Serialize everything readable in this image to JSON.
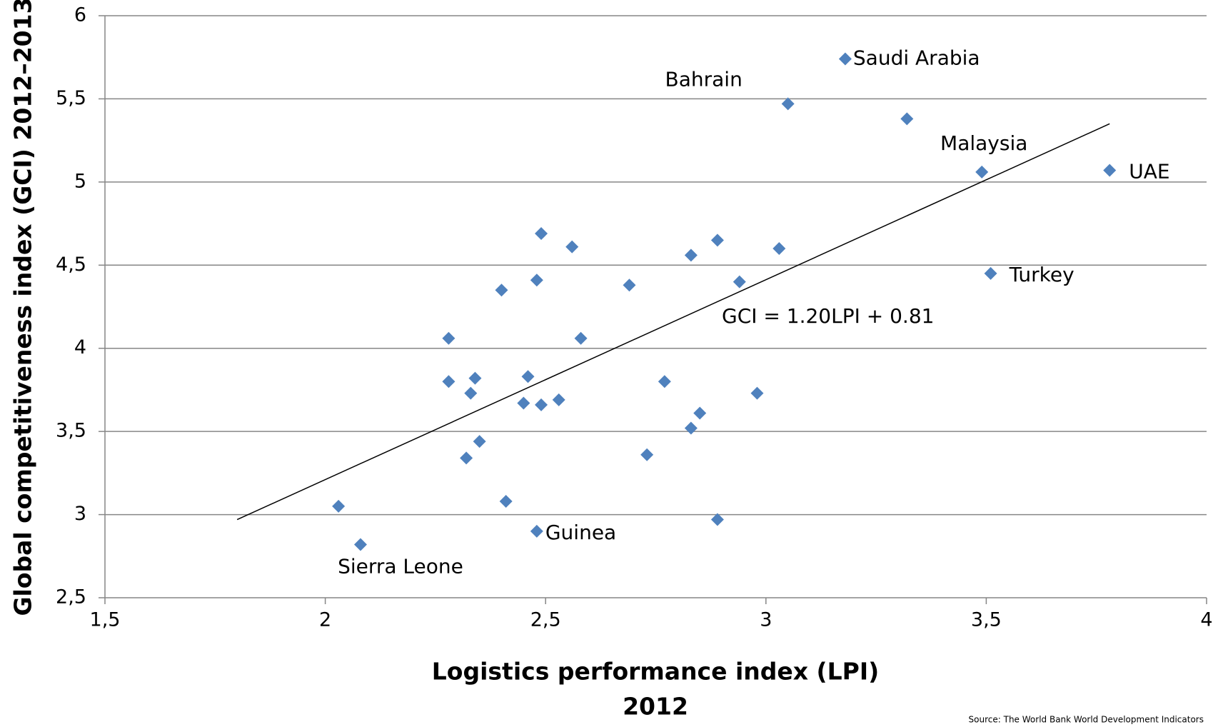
{
  "chart_data": {
    "type": "scatter",
    "xlabel": [
      "Logistics performance index (LPI)",
      "2012"
    ],
    "ylabel": "Global competitiveness index (GCI)   2012–2013",
    "source": "Source: The World Bank World Development Indicators",
    "equation": "GCI = 1.20LPI + 0.81",
    "color": "#4f81bd",
    "grid": true,
    "xlim": [
      1.5,
      4
    ],
    "ylim": [
      2.5,
      6
    ],
    "xticks": [
      {
        "value": 1.5,
        "label": "1,5"
      },
      2,
      {
        "value": 2.5,
        "label": "2,5"
      },
      3,
      {
        "value": 3.5,
        "label": "3,5"
      },
      4
    ],
    "yticks": [
      {
        "value": 2.5,
        "label": "2,5"
      },
      3,
      {
        "value": 3.5,
        "label": "3,5"
      },
      4,
      {
        "value": 4.5,
        "label": "4,5"
      },
      5,
      {
        "value": 5.5,
        "label": "5,5"
      },
      6
    ],
    "x": [
      3.18,
      3.05,
      3.32,
      3.49,
      3.78,
      3.51,
      2.49,
      2.56,
      2.89,
      3.03,
      2.83,
      2.48,
      2.4,
      2.69,
      2.94,
      2.28,
      2.58,
      2.28,
      2.34,
      2.46,
      2.77,
      2.33,
      2.45,
      2.49,
      2.53,
      2.98,
      2.85,
      2.83,
      2.35,
      2.32,
      2.73,
      2.41,
      2.03,
      2.89,
      2.48,
      2.08
    ],
    "values": [
      5.74,
      5.47,
      5.38,
      5.06,
      5.07,
      4.45,
      4.69,
      4.61,
      4.65,
      4.6,
      4.56,
      4.41,
      4.35,
      4.38,
      4.4,
      4.06,
      4.06,
      3.8,
      3.82,
      3.83,
      3.8,
      3.73,
      3.67,
      3.66,
      3.69,
      3.73,
      3.61,
      3.52,
      3.44,
      3.34,
      3.36,
      3.08,
      3.05,
      2.97,
      2.9,
      2.82
    ],
    "labels": [
      "Saudi Arabia",
      "Bahrain",
      null,
      "Malaysia",
      "UAE",
      "Turkey",
      null,
      null,
      null,
      null,
      null,
      null,
      null,
      null,
      null,
      null,
      null,
      null,
      null,
      null,
      null,
      null,
      null,
      null,
      null,
      null,
      null,
      null,
      null,
      null,
      null,
      null,
      null,
      null,
      "Guinea",
      "Sierra Leone"
    ],
    "trendline": {
      "x": [
        1.8,
        3.78
      ],
      "y": [
        2.97,
        5.35
      ]
    }
  }
}
